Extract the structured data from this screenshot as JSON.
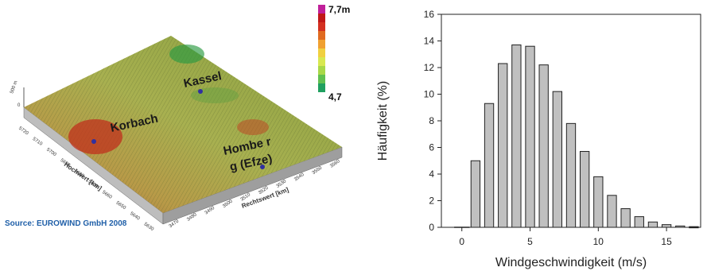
{
  "map": {
    "places": [
      "Kassel",
      "Korbach",
      "Hombe r",
      "g (Efze)"
    ],
    "source": "Source: EUROWIND GmbH 2008",
    "legend": {
      "max": "7,7m",
      "min": "4,7",
      "colors": [
        "#c0209a",
        "#c01818",
        "#d43020",
        "#e06a20",
        "#f0a030",
        "#f0d040",
        "#d8e850",
        "#a8d848",
        "#60c050",
        "#20a060"
      ]
    },
    "axis_hochwert": "Hochwert [km]",
    "axis_rechtswert": "Rechtswert [km]",
    "hochwert_ticks": [
      "5720",
      "5710",
      "5700",
      "5690",
      "5680",
      "5670",
      "5660",
      "5650",
      "5640",
      "5630"
    ],
    "rechtswert_ticks": [
      "3470",
      "3480",
      "3490",
      "3500",
      "3510",
      "3520",
      "3530",
      "3540",
      "3550",
      "3560"
    ],
    "z_ticks": [
      "500 m",
      "0"
    ]
  },
  "chart_data": {
    "type": "bar",
    "title": "",
    "xlabel": "Windgeschwindigkeit (m/s)",
    "ylabel": "Häufigkeit (%)",
    "x": [
      0,
      1,
      2,
      3,
      4,
      5,
      6,
      7,
      8,
      9,
      10,
      11,
      12,
      13,
      14,
      15,
      16,
      17
    ],
    "values": [
      0,
      5.0,
      9.3,
      12.3,
      13.7,
      13.6,
      12.2,
      10.2,
      7.8,
      5.7,
      3.8,
      2.4,
      1.4,
      0.8,
      0.4,
      0.2,
      0.1,
      0.05
    ],
    "xlim": [
      -1.5,
      17.5
    ],
    "ylim": [
      0,
      16
    ],
    "xticks": [
      "0",
      "5",
      "10",
      "15"
    ],
    "yticks": [
      "0",
      "2",
      "4",
      "6",
      "8",
      "10",
      "12",
      "14",
      "16"
    ],
    "bar_color": "#c0c0c0"
  }
}
